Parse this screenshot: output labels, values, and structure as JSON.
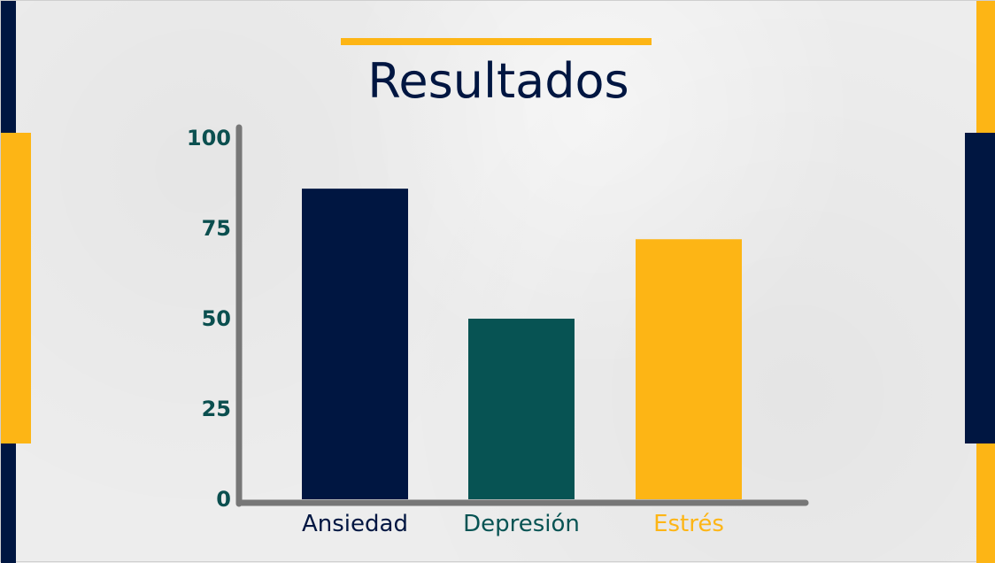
{
  "slide": {
    "title": "Resultados",
    "colors": {
      "navy": "#001641",
      "teal": "#075353",
      "yellow": "#FDB515",
      "axis": "#777777",
      "background": "#EDEDED"
    }
  },
  "chart_data": {
    "type": "bar",
    "title": "",
    "xlabel": "",
    "ylabel": "",
    "categories": [
      "Ansiedad",
      "Depresión",
      "Estrés"
    ],
    "values": [
      86,
      50,
      72
    ],
    "bar_colors": [
      "#001641",
      "#075353",
      "#FDB515"
    ],
    "category_label_colors": [
      "#001641",
      "#075353",
      "#FDB515"
    ],
    "ylim": [
      0,
      100
    ],
    "yticks": [
      0,
      25,
      50,
      75,
      100
    ],
    "ytick_labels": [
      "0",
      "25",
      "50",
      "75",
      "100"
    ],
    "ytick_color": "#0B4F4F",
    "grid": false,
    "legend": "none"
  }
}
